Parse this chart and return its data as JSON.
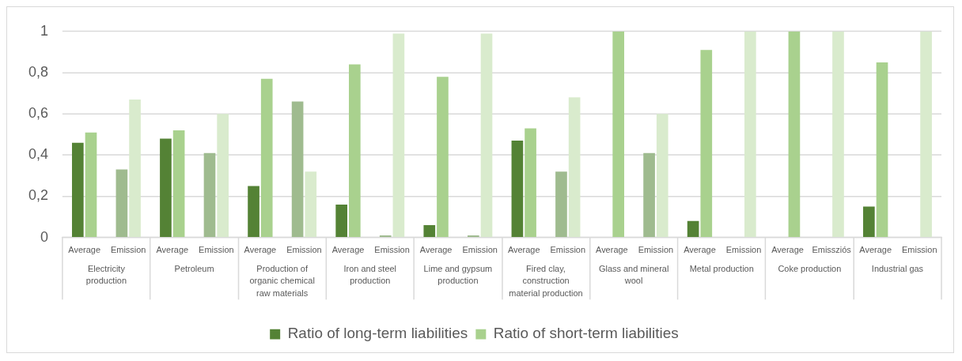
{
  "chart_data": {
    "type": "bar",
    "categories": [
      "Average",
      "Emission",
      "Average",
      "Emission",
      "Average",
      "Emission",
      "Average",
      "Emission",
      "Average",
      "Emission",
      "Average",
      "Emission",
      "Average",
      "Emission",
      "Average",
      "Emission",
      "Average",
      "Emissziós",
      "Average",
      "Emission"
    ],
    "series": [
      {
        "name": "Ratio of long-term liabilities",
        "color": "#548235",
        "colors": [
          "#548235",
          "#9fbb8f",
          "#548235",
          "#9fbb8f",
          "#548235",
          "#9fbb8f",
          "#548235",
          "#9fbb8f",
          "#548235",
          "#9fbb8f",
          "#548235",
          "#9fbb8f",
          "#548235",
          "#9fbb8f",
          "#548235",
          "#9fbb8f",
          "#548235",
          "#9fbb8f",
          "#548235",
          "#9fbb8f"
        ],
        "values": [
          0.46,
          0.33,
          0.48,
          0.41,
          0.25,
          0.66,
          0.16,
          0.01,
          0.06,
          0.01,
          0.47,
          0.32,
          null,
          0.41,
          0.08,
          null,
          null,
          null,
          0.15,
          null
        ]
      },
      {
        "name": "Ratio of short-term liabilities",
        "color": "#a9d18e",
        "colors": [
          "#a9d18e",
          "#d9ebcd",
          "#a9d18e",
          "#d9ebcd",
          "#a9d18e",
          "#d9ebcd",
          "#a9d18e",
          "#d9ebcd",
          "#a9d18e",
          "#d9ebcd",
          "#a9d18e",
          "#d9ebcd",
          "#a9d18e",
          "#d9ebcd",
          "#a9d18e",
          "#d9ebcd",
          "#a9d18e",
          "#d9ebcd",
          "#a9d18e",
          "#d9ebcd"
        ],
        "values": [
          0.51,
          0.67,
          0.52,
          0.6,
          0.77,
          0.32,
          0.84,
          0.99,
          0.78,
          0.99,
          0.53,
          0.68,
          1,
          0.6,
          0.91,
          1,
          1,
          1,
          0.85,
          1
        ]
      }
    ],
    "ylim": [
      0,
      1
    ],
    "yticks": [
      0,
      {
        "value": 0.2,
        "label": "0,2"
      },
      {
        "value": 0.4,
        "label": "0,4"
      },
      {
        "value": 0.6,
        "label": "0,6"
      },
      {
        "value": 0.8,
        "label": "0,8"
      },
      1
    ],
    "grid": "y",
    "legend": "bottom",
    "annotations": [
      "Electricity production",
      "Petroleum",
      "Production of organic chemical raw materials",
      "Iron and steel production",
      "Lime and gypsum production",
      "Fired clay, construction material production",
      "Glass and mineral wool",
      "Metal production",
      "Coke production",
      "Industrial gas"
    ]
  }
}
